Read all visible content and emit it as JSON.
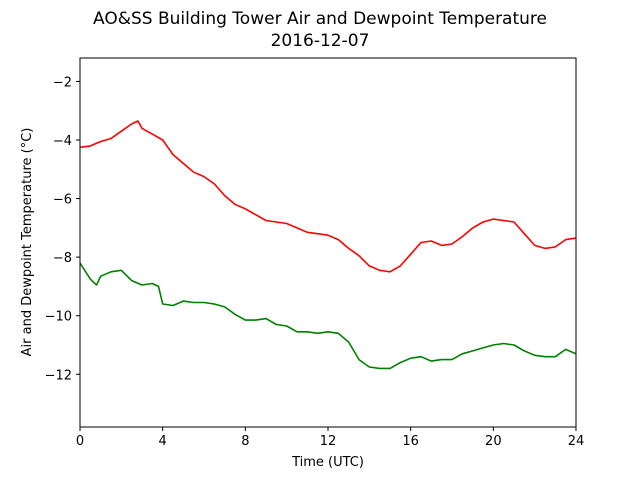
{
  "chart_data": {
    "type": "line",
    "title": "AO&SS Building Tower Air and Dewpoint Temperature",
    "subtitle": "2016-12-07",
    "xlabel": "Time (UTC)",
    "ylabel": "Air and Dewpoint Temperature (°C)",
    "xlim": [
      0,
      24
    ],
    "ylim": [
      -13.8,
      -1.2
    ],
    "xticks": [
      0,
      4,
      8,
      12,
      16,
      20,
      24
    ],
    "yticks": [
      -2,
      -4,
      -6,
      -8,
      -10,
      -12
    ],
    "ytick_labels": [
      "−2",
      "−4",
      "−6",
      "−8",
      "−10",
      "−12"
    ],
    "grid": false,
    "legend": "none",
    "series": [
      {
        "color": "#ff0000",
        "x": [
          0,
          0.5,
          1,
          1.5,
          2,
          2.5,
          2.8,
          3,
          3.5,
          4,
          4.5,
          5,
          5.5,
          6,
          6.5,
          7,
          7.5,
          8,
          8.5,
          9,
          9.5,
          10,
          10.5,
          11,
          11.5,
          12,
          12.5,
          13,
          13.5,
          14,
          14.5,
          15,
          15.5,
          16,
          16.5,
          17,
          17.5,
          18,
          18.5,
          19,
          19.5,
          20,
          20.5,
          21,
          21.5,
          22,
          22.5,
          23,
          23.5,
          24
        ],
        "y": [
          -4.25,
          -4.2,
          -4.05,
          -3.95,
          -3.7,
          -3.45,
          -3.35,
          -3.6,
          -3.8,
          -4.0,
          -4.5,
          -4.8,
          -5.1,
          -5.25,
          -5.5,
          -5.9,
          -6.2,
          -6.35,
          -6.55,
          -6.75,
          -6.8,
          -6.85,
          -7.0,
          -7.15,
          -7.2,
          -7.25,
          -7.4,
          -7.7,
          -7.95,
          -8.3,
          -8.45,
          -8.5,
          -8.3,
          -7.9,
          -7.5,
          -7.45,
          -7.6,
          -7.55,
          -7.3,
          -7.0,
          -6.8,
          -6.7,
          -6.75,
          -6.8,
          -7.2,
          -7.6,
          -7.7,
          -7.65,
          -7.4,
          -7.35
        ]
      },
      {
        "color": "#008000",
        "x": [
          0,
          0.5,
          0.8,
          1,
          1.5,
          2,
          2.5,
          3,
          3.5,
          3.8,
          4,
          4.5,
          5,
          5.5,
          6,
          6.5,
          7,
          7.5,
          8,
          8.5,
          9,
          9.5,
          10,
          10.5,
          11,
          11.5,
          12,
          12.5,
          13,
          13.5,
          14,
          14.5,
          15,
          15.5,
          16,
          16.5,
          17,
          17.5,
          18,
          18.5,
          19,
          19.5,
          20,
          20.5,
          21,
          21.5,
          22,
          22.5,
          23,
          23.5,
          24
        ],
        "y": [
          -8.2,
          -8.75,
          -8.95,
          -8.65,
          -8.5,
          -8.45,
          -8.8,
          -8.95,
          -8.9,
          -9.0,
          -9.6,
          -9.65,
          -9.5,
          -9.55,
          -9.55,
          -9.6,
          -9.7,
          -9.95,
          -10.15,
          -10.15,
          -10.1,
          -10.3,
          -10.35,
          -10.55,
          -10.55,
          -10.6,
          -10.55,
          -10.6,
          -10.9,
          -11.5,
          -11.75,
          -11.8,
          -11.8,
          -11.6,
          -11.45,
          -11.4,
          -11.55,
          -11.5,
          -11.5,
          -11.3,
          -11.2,
          -11.1,
          -11.0,
          -10.95,
          -11.0,
          -11.2,
          -11.35,
          -11.4,
          -11.4,
          -11.15,
          -11.3
        ]
      }
    ]
  }
}
